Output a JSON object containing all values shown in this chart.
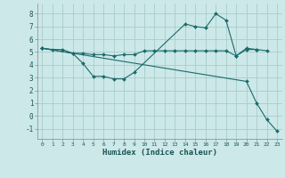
{
  "xlabel": "Humidex (Indice chaleur)",
  "bg_color": "#cce8e8",
  "grid_color": "#aacccc",
  "line_color": "#1a6b6b",
  "line1_x": [
    0,
    1,
    2,
    3,
    4,
    5,
    6,
    7,
    8,
    9,
    10,
    11,
    12,
    13,
    14,
    15,
    16,
    17,
    18,
    19,
    20,
    21,
    22
  ],
  "line1_y": [
    5.3,
    5.2,
    5.2,
    4.9,
    4.9,
    4.8,
    4.8,
    4.7,
    4.8,
    4.8,
    5.1,
    5.1,
    5.1,
    5.1,
    5.1,
    5.1,
    5.1,
    5.1,
    5.1,
    4.7,
    5.2,
    5.2,
    5.1
  ],
  "line2_x": [
    0,
    3,
    4,
    5,
    6,
    7,
    8,
    9,
    14,
    15,
    16,
    17,
    18,
    19,
    20,
    21
  ],
  "line2_y": [
    5.3,
    4.9,
    4.1,
    3.1,
    3.1,
    2.9,
    2.9,
    3.4,
    7.2,
    7.0,
    6.9,
    8.0,
    7.5,
    4.7,
    5.3,
    5.2
  ],
  "line3_x": [
    0,
    20,
    21,
    22,
    23
  ],
  "line3_y": [
    5.3,
    2.7,
    1.0,
    -0.3,
    -1.2
  ],
  "ylim": [
    -1.8,
    8.8
  ],
  "xlim": [
    -0.5,
    23.5
  ],
  "yticks": [
    -1,
    0,
    1,
    2,
    3,
    4,
    5,
    6,
    7,
    8
  ],
  "xticks": [
    0,
    1,
    2,
    3,
    4,
    5,
    6,
    7,
    8,
    9,
    10,
    11,
    12,
    13,
    14,
    15,
    16,
    17,
    18,
    19,
    20,
    21,
    22,
    23
  ],
  "xtick_labels": [
    "0",
    "1",
    "2",
    "3",
    "4",
    "5",
    "6",
    "7",
    "8",
    "9",
    "10",
    "11",
    "12",
    "13",
    "14",
    "15",
    "16",
    "17",
    "18",
    "19",
    "20",
    "21",
    "22",
    "23"
  ]
}
